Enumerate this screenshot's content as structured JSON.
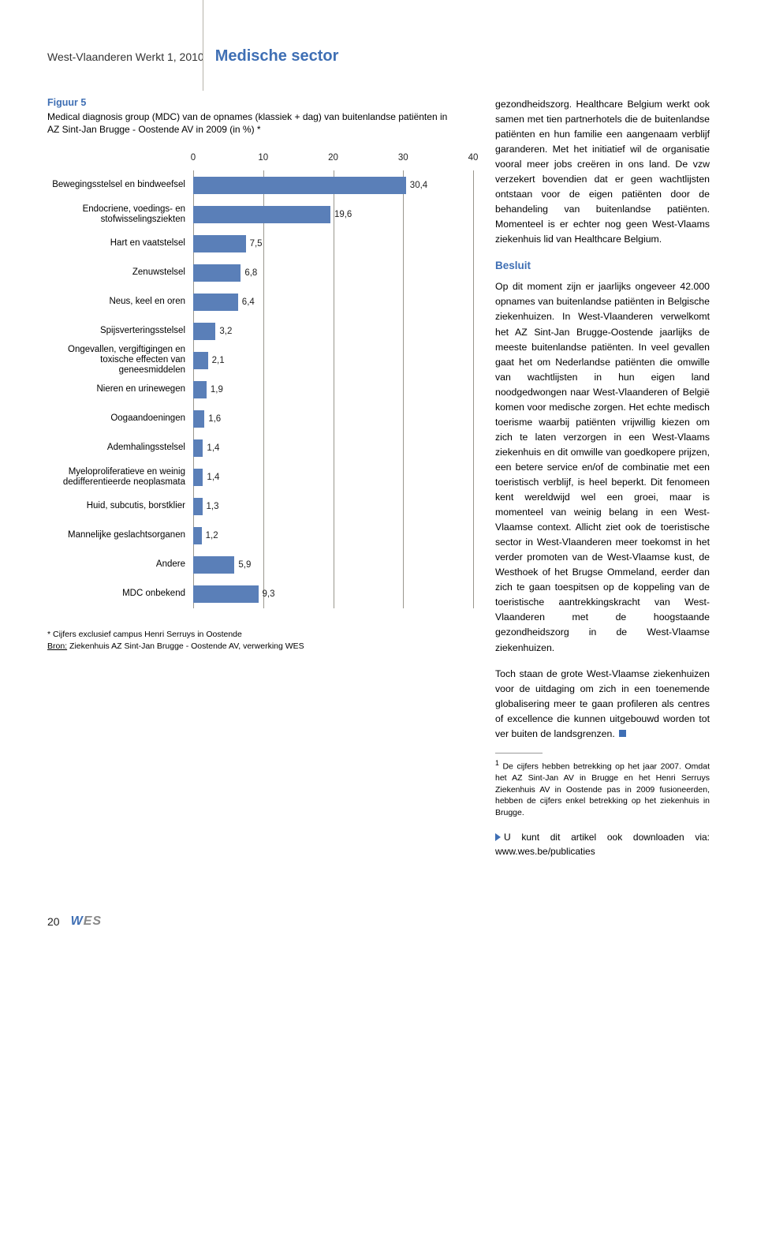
{
  "header": {
    "left": "West-Vlaanderen Werkt 1, 2010",
    "right": "Medische sector"
  },
  "figure": {
    "label": "Figuur 5",
    "caption": "Medical diagnosis group (MDC) van de opnames (klassiek + dag) van buitenlandse patiënten in AZ Sint-Jan Brugge - Oostende AV in 2009 (in %) *",
    "chart": {
      "type": "bar-horizontal",
      "xmax": 40,
      "xticks": [
        0,
        10,
        20,
        30,
        40
      ],
      "bar_color": "#5a7fb8",
      "grid_color": "#9a978e",
      "tick_fontsize": 11.5,
      "cat_fontsize": 11.5,
      "rows": [
        {
          "label": "Bewegingsstelsel en bindweefsel",
          "value": 30.4,
          "disp": "30,4"
        },
        {
          "label": "Endocriene, voedings- en stofwisselingsziekten",
          "value": 19.6,
          "disp": "19,6"
        },
        {
          "label": "Hart en vaatstelsel",
          "value": 7.5,
          "disp": "7,5"
        },
        {
          "label": "Zenuwstelsel",
          "value": 6.8,
          "disp": "6,8"
        },
        {
          "label": "Neus, keel en oren",
          "value": 6.4,
          "disp": "6,4"
        },
        {
          "label": "Spijsverteringsstelsel",
          "value": 3.2,
          "disp": "3,2"
        },
        {
          "label": "Ongevallen, vergiftigingen en toxische effecten van geneesmiddelen",
          "value": 2.1,
          "disp": "2,1"
        },
        {
          "label": "Nieren en urinewegen",
          "value": 1.9,
          "disp": "1,9"
        },
        {
          "label": "Oogaandoeningen",
          "value": 1.6,
          "disp": "1,6"
        },
        {
          "label": "Ademhalingsstelsel",
          "value": 1.4,
          "disp": "1,4"
        },
        {
          "label": "Myeloproliferatieve en weinig dedifferentieerde neoplasmata",
          "value": 1.4,
          "disp": "1,4"
        },
        {
          "label": "Huid, subcutis, borstklier",
          "value": 1.3,
          "disp": "1,3"
        },
        {
          "label": "Mannelijke geslachtsorganen",
          "value": 1.2,
          "disp": "1,2"
        },
        {
          "label": "Andere",
          "value": 5.9,
          "disp": "5,9"
        },
        {
          "label": "MDC onbekend",
          "value": 9.3,
          "disp": "9,3"
        }
      ]
    },
    "footnote_star": "* Cijfers exclusief campus Henri Serruys in Oostende",
    "footnote_src_label": "Bron:",
    "footnote_src": " Ziekenhuis AZ Sint-Jan Brugge - Oostende AV, verwerking WES"
  },
  "body": {
    "p1": "gezondheidszorg. Healthcare Belgium werkt ook samen met tien partnerhotels die de buitenlandse patiënten en hun familie een aangenaam verblijf garanderen. Met het initiatief wil de organisatie vooral meer jobs creëren in ons land. De vzw verzekert bovendien dat er geen wachtlijsten ontstaan voor de eigen patiënten door de behandeling van buitenlandse patiënten. Momenteel is er echter nog geen West-Vlaams ziekenhuis lid van Healthcare Belgium.",
    "subhead": "Besluit",
    "p2": "Op dit moment zijn er jaarlijks ongeveer 42.000 opnames van buitenlandse patiënten in Belgische ziekenhuizen. In West-Vlaanderen verwelkomt het AZ Sint-Jan Brugge-Oostende jaarlijks de meeste buitenlandse patiënten. In veel gevallen gaat het om Nederlandse patiënten die omwille van wachtlijsten in hun eigen land noodgedwongen naar West-Vlaanderen of België komen voor medische zorgen. Het echte medisch toerisme waarbij patiënten vrijwillig kiezen om zich te laten verzorgen in een West-Vlaams ziekenhuis en dit omwille van goedkopere prijzen, een betere service en/of de combinatie met een toeristisch verblijf, is heel beperkt. Dit fenomeen kent wereldwijd wel een groei, maar is momenteel van weinig belang in een West-Vlaamse context. Allicht ziet ook de toeristische sector in West-Vlaanderen meer toekomst in het verder promoten van de West-Vlaamse kust, de Westhoek of het Brugse Ommeland, eerder dan zich te gaan toespitsen op de koppeling van de toeristische aantrekkingskracht van West-Vlaanderen met de hoogstaande gezondheidszorg in de West-Vlaamse ziekenhuizen.",
    "p3": "Toch staan de grote West-Vlaamse ziekenhuizen voor de uitdaging om zich in een toenemende globalisering meer te gaan profileren als centres of excellence die kunnen uitgebouwd worden tot ver buiten de landsgrenzen.",
    "fn1_num": "1",
    "fn1": "De cijfers hebben betrekking op het jaar 2007. Omdat het AZ Sint-Jan AV in Brugge en het Henri Serruys Ziekenhuis AV in Oostende pas in 2009 fusioneerden, hebben de cijfers enkel betrekking op het ziekenhuis in Brugge.",
    "download": "U kunt dit artikel ook downloaden via: www.wes.be/publicaties"
  },
  "footer": {
    "page": "20",
    "logo_w": "W",
    "logo_es": "ES"
  },
  "colors": {
    "accent": "#3f6fb4",
    "bar": "#5a7fb8",
    "grid": "#9a978e"
  }
}
